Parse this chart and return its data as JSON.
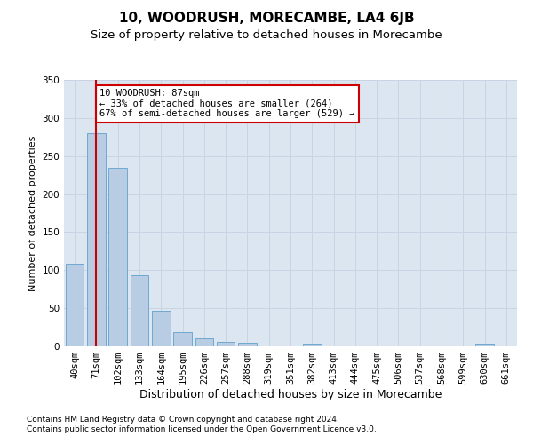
{
  "title": "10, WOODRUSH, MORECAMBE, LA4 6JB",
  "subtitle": "Size of property relative to detached houses in Morecambe",
  "xlabel": "Distribution of detached houses by size in Morecambe",
  "ylabel": "Number of detached properties",
  "categories": [
    "40sqm",
    "71sqm",
    "102sqm",
    "133sqm",
    "164sqm",
    "195sqm",
    "226sqm",
    "257sqm",
    "288sqm",
    "319sqm",
    "351sqm",
    "382sqm",
    "413sqm",
    "444sqm",
    "475sqm",
    "506sqm",
    "537sqm",
    "568sqm",
    "599sqm",
    "630sqm",
    "661sqm"
  ],
  "values": [
    108,
    280,
    235,
    93,
    47,
    19,
    11,
    6,
    5,
    0,
    0,
    3,
    0,
    0,
    0,
    0,
    0,
    0,
    0,
    3,
    0
  ],
  "bar_color": "#b8cce4",
  "bar_edge_color": "#6fa8d0",
  "ylim": [
    0,
    350
  ],
  "yticks": [
    0,
    50,
    100,
    150,
    200,
    250,
    300,
    350
  ],
  "property_line_x": 1.0,
  "annotation_text": "10 WOODRUSH: 87sqm\n← 33% of detached houses are smaller (264)\n67% of semi-detached houses are larger (529) →",
  "annotation_box_color": "#ffffff",
  "annotation_box_edge_color": "#cc0000",
  "property_line_color": "#cc0000",
  "grid_color": "#c8d4e4",
  "background_color": "#dce6f1",
  "footer_text": "Contains HM Land Registry data © Crown copyright and database right 2024.\nContains public sector information licensed under the Open Government Licence v3.0.",
  "title_fontsize": 11,
  "subtitle_fontsize": 9.5,
  "xlabel_fontsize": 9,
  "ylabel_fontsize": 8,
  "tick_fontsize": 7.5,
  "footer_fontsize": 6.5
}
